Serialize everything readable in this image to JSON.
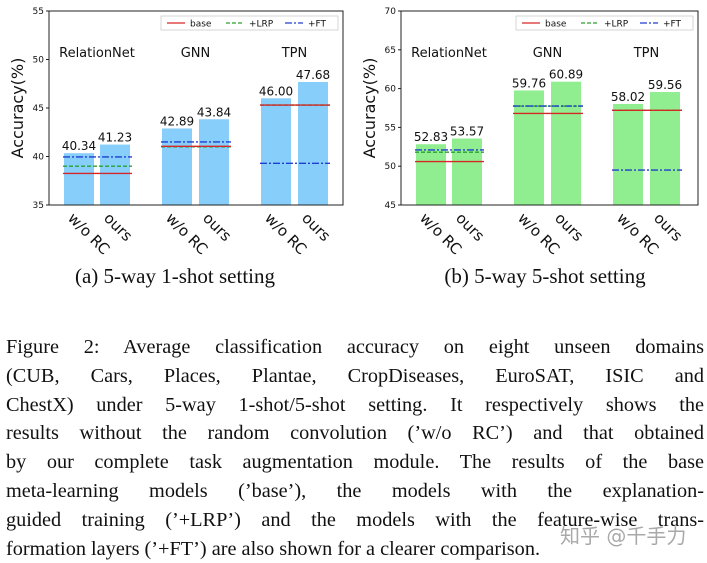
{
  "chart_data": [
    {
      "type": "bar",
      "ylabel": "Accuracy(%)",
      "ylim": [
        35,
        55
      ],
      "yticks": [
        35,
        40,
        45,
        50,
        55
      ],
      "bar_color": "#87CEFA",
      "groups": [
        {
          "name": "RelationNet",
          "categories": [
            "w/o RC",
            "ours"
          ],
          "values": [
            40.34,
            41.23
          ],
          "value_labels": [
            "40.34",
            "41.23"
          ],
          "base": 38.25,
          "lrp": 39.0,
          "ft": 39.95
        },
        {
          "name": "GNN",
          "categories": [
            "w/o RC",
            "ours"
          ],
          "values": [
            42.89,
            43.84
          ],
          "value_labels": [
            "42.89",
            "43.84"
          ],
          "base": 41.05,
          "lrp": 41.0,
          "ft": 41.5
        },
        {
          "name": "TPN",
          "categories": [
            "w/o RC",
            "ours"
          ],
          "values": [
            46.0,
            47.68
          ],
          "value_labels": [
            "46.00",
            "47.68"
          ],
          "base": 45.3,
          "lrp": 45.3,
          "ft": 39.3
        }
      ],
      "legend": {
        "placement": "top-right",
        "entries": [
          {
            "label": "base",
            "color": "#d62728",
            "style": "solid"
          },
          {
            "label": "+LRP",
            "color": "#2ca02c",
            "style": "dashed"
          },
          {
            "label": "+FT",
            "color": "#1f3fd0",
            "style": "dashdot"
          }
        ]
      },
      "grid": false,
      "subcaption": "(a) 5-way 1-shot setting"
    },
    {
      "type": "bar",
      "ylabel": "Accuracy(%)",
      "ylim": [
        45,
        70
      ],
      "yticks": [
        45,
        50,
        55,
        60,
        65,
        70
      ],
      "bar_color": "#90EE90",
      "groups": [
        {
          "name": "RelationNet",
          "categories": [
            "w/o RC",
            "ours"
          ],
          "values": [
            52.83,
            53.57
          ],
          "value_labels": [
            "52.83",
            "53.57"
          ],
          "base": 50.6,
          "lrp": 51.8,
          "ft": 52.1
        },
        {
          "name": "GNN",
          "categories": [
            "w/o RC",
            "ours"
          ],
          "values": [
            59.76,
            60.89
          ],
          "value_labels": [
            "59.76",
            "60.89"
          ],
          "base": 56.8,
          "lrp": 57.75,
          "ft": 57.75
        },
        {
          "name": "TPN",
          "categories": [
            "w/o RC",
            "ours"
          ],
          "values": [
            58.02,
            59.56
          ],
          "value_labels": [
            "58.02",
            "59.56"
          ],
          "base": 57.2,
          "lrp": 57.2,
          "ft": 49.5
        }
      ],
      "legend": {
        "placement": "top-right",
        "entries": [
          {
            "label": "base",
            "color": "#d62728",
            "style": "solid"
          },
          {
            "label": "+LRP",
            "color": "#2ca02c",
            "style": "dashed"
          },
          {
            "label": "+FT",
            "color": "#1f3fd0",
            "style": "dashdot"
          }
        ]
      },
      "grid": false,
      "subcaption": "(b) 5-way 5-shot setting"
    }
  ],
  "caption_lines": [
    "Figure 2: Average classification accuracy on eight unseen domains",
    "(CUB, Cars, Places, Plantae, CropDiseases, EuroSAT, ISIC and",
    "ChestX) under 5-way 1-shot/5-shot setting. It respectively shows the",
    "results without the random convolution (’w/o RC’) and that obtained",
    "by our complete task augmentation module. The results of the base",
    "meta-learning models (’base’), the models with the explanation-",
    "guided training (’+LRP’) and the models with the feature-wise trans-",
    "formation layers (’+FT’) are also shown for a clearer comparison."
  ],
  "watermark": "知乎 @千手力"
}
